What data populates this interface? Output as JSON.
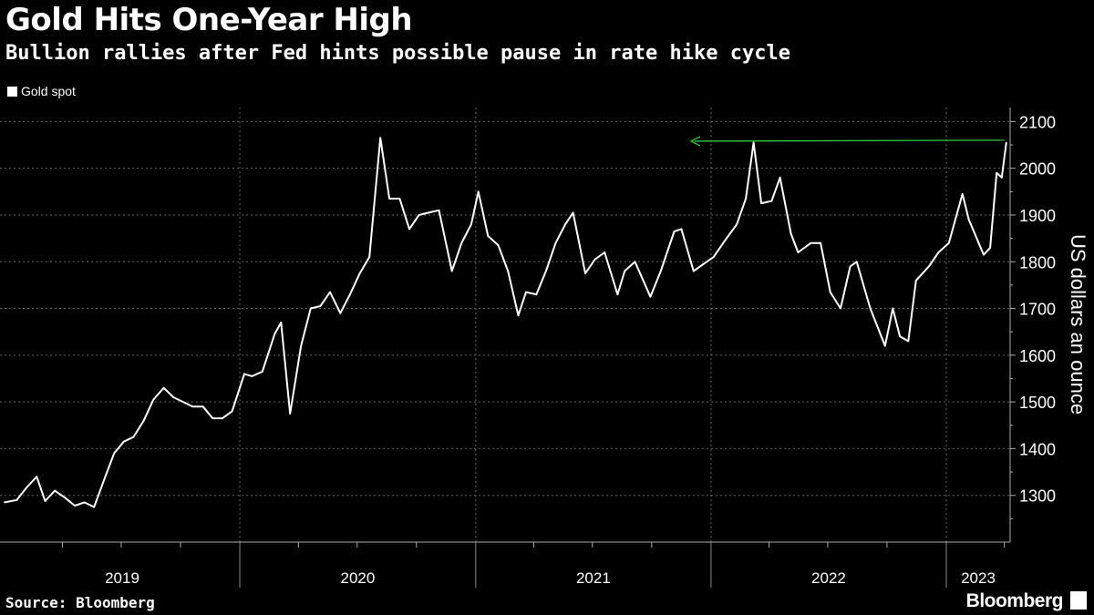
{
  "header": {
    "title": "Gold Hits One-Year High",
    "subtitle": "Bullion rallies after Fed hints possible pause in rate hike cycle"
  },
  "footer": {
    "source": "Source: Bloomberg",
    "brand": "Bloomberg",
    "brand_icon": "bloomberg-terminal-icon"
  },
  "colors": {
    "background": "#000000",
    "series": "#ffffff",
    "annotation_arrow": "#2ecc40",
    "grid": "#666666"
  },
  "chart_data": {
    "type": "line",
    "legend": [
      "Gold spot"
    ],
    "legend_position": "top-left",
    "ylabel": "US dollars an ounce",
    "yaxis_side": "right",
    "ylim": [
      1200,
      2130
    ],
    "yticks": [
      1300,
      1400,
      1500,
      1600,
      1700,
      1800,
      1900,
      2000,
      2100
    ],
    "xlim": [
      "2018-12-25",
      "2023-04-10"
    ],
    "year_labels": [
      "2019",
      "2020",
      "2021",
      "2022",
      "2023"
    ],
    "grid": true,
    "series": [
      {
        "name": "Gold spot",
        "x": [
          "2019-01-01",
          "2019-01-20",
          "2019-02-05",
          "2019-02-20",
          "2019-03-05",
          "2019-03-20",
          "2019-04-05",
          "2019-04-20",
          "2019-05-05",
          "2019-05-20",
          "2019-06-05",
          "2019-06-20",
          "2019-07-05",
          "2019-07-20",
          "2019-08-05",
          "2019-08-20",
          "2019-09-05",
          "2019-09-20",
          "2019-10-05",
          "2019-10-20",
          "2019-11-05",
          "2019-11-20",
          "2019-12-05",
          "2019-12-20",
          "2020-01-08",
          "2020-01-20",
          "2020-02-05",
          "2020-02-24",
          "2020-03-05",
          "2020-03-19",
          "2020-04-05",
          "2020-04-20",
          "2020-05-05",
          "2020-05-20",
          "2020-06-05",
          "2020-06-20",
          "2020-07-05",
          "2020-07-20",
          "2020-08-06",
          "2020-08-20",
          "2020-09-05",
          "2020-09-20",
          "2020-10-05",
          "2020-10-20",
          "2020-11-05",
          "2020-11-25",
          "2020-12-10",
          "2020-12-25",
          "2021-01-05",
          "2021-01-20",
          "2021-02-05",
          "2021-02-20",
          "2021-03-08",
          "2021-03-20",
          "2021-04-05",
          "2021-04-20",
          "2021-05-05",
          "2021-05-20",
          "2021-06-01",
          "2021-06-20",
          "2021-07-05",
          "2021-07-20",
          "2021-08-09",
          "2021-08-20",
          "2021-09-05",
          "2021-09-29",
          "2021-10-15",
          "2021-11-05",
          "2021-11-16",
          "2021-12-05",
          "2021-12-15",
          "2022-01-05",
          "2022-01-25",
          "2022-02-10",
          "2022-02-24",
          "2022-03-08",
          "2022-03-20",
          "2022-04-05",
          "2022-04-18",
          "2022-05-05",
          "2022-05-16",
          "2022-06-05",
          "2022-06-20",
          "2022-07-05",
          "2022-07-21",
          "2022-08-05",
          "2022-08-15",
          "2022-09-05",
          "2022-09-28",
          "2022-10-10",
          "2022-10-21",
          "2022-11-03",
          "2022-11-15",
          "2022-12-05",
          "2022-12-20",
          "2023-01-05",
          "2023-01-26",
          "2023-02-05",
          "2023-02-28",
          "2023-03-10",
          "2023-03-20",
          "2023-03-28",
          "2023-04-04"
        ],
        "y": [
          1285,
          1290,
          1318,
          1340,
          1288,
          1310,
          1295,
          1278,
          1285,
          1275,
          1335,
          1390,
          1415,
          1425,
          1460,
          1505,
          1530,
          1510,
          1500,
          1490,
          1490,
          1465,
          1465,
          1480,
          1560,
          1555,
          1565,
          1645,
          1670,
          1475,
          1620,
          1700,
          1705,
          1735,
          1690,
          1730,
          1775,
          1810,
          2065,
          1935,
          1935,
          1870,
          1900,
          1905,
          1910,
          1780,
          1840,
          1880,
          1950,
          1855,
          1835,
          1780,
          1685,
          1735,
          1730,
          1780,
          1840,
          1880,
          1905,
          1775,
          1805,
          1820,
          1730,
          1780,
          1800,
          1725,
          1780,
          1865,
          1870,
          1780,
          1790,
          1810,
          1850,
          1880,
          1935,
          2055,
          1925,
          1930,
          1980,
          1860,
          1820,
          1840,
          1840,
          1735,
          1700,
          1790,
          1800,
          1700,
          1620,
          1700,
          1640,
          1630,
          1760,
          1790,
          1820,
          1840,
          1945,
          1890,
          1815,
          1830,
          1990,
          1980,
          2055
        ]
      }
    ],
    "annotations": [
      {
        "type": "arrow",
        "from": [
          "2023-04-01",
          2060
        ],
        "to": [
          "2021-12-01",
          2058
        ],
        "color": "green"
      }
    ]
  }
}
